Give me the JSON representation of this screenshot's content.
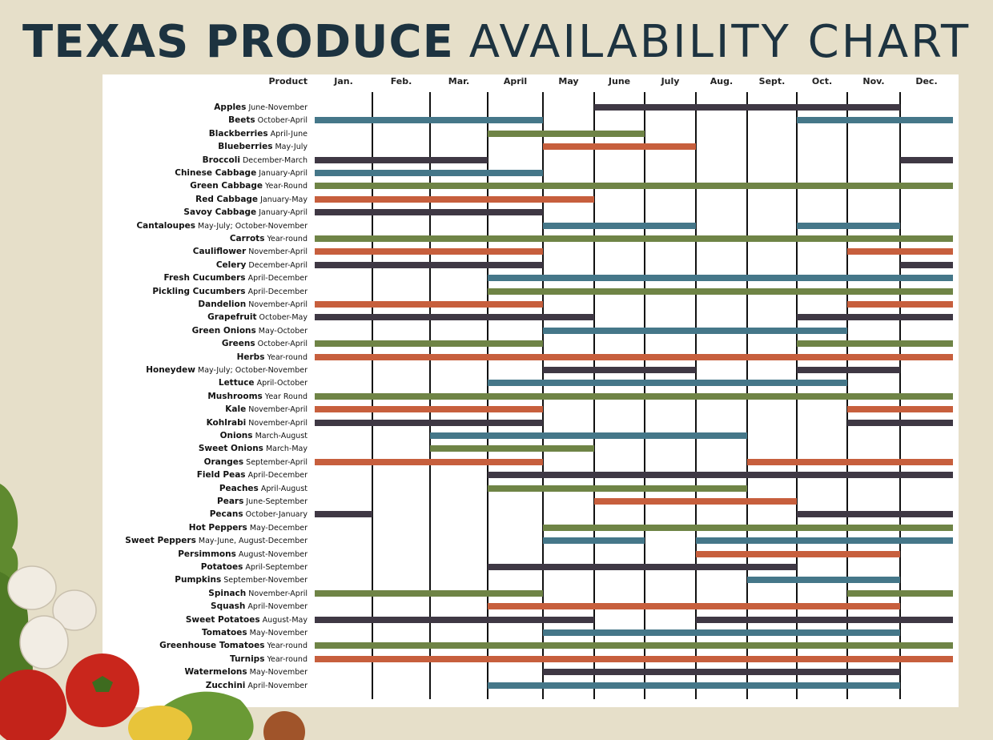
{
  "title": {
    "bold": "TEXAS PRODUCE",
    "light": "AVAILABILITY CHART"
  },
  "chart_data": {
    "type": "gantt",
    "product_header": "Product",
    "months": [
      "Jan.",
      "Feb.",
      "Mar.",
      "April",
      "May",
      "June",
      "July",
      "Aug.",
      "Sept.",
      "Oct.",
      "Nov.",
      "Dec."
    ],
    "colors": {
      "dark": "#3f3844",
      "blue": "#457789",
      "green": "#6f8446",
      "orange": "#c75f3d"
    },
    "products": [
      {
        "name": "Apples",
        "range": "June-November",
        "color": "dark",
        "spans": [
          [
            6,
            11
          ]
        ]
      },
      {
        "name": "Beets",
        "range": "October-April",
        "color": "blue",
        "spans": [
          [
            1,
            4
          ],
          [
            10,
            12
          ]
        ]
      },
      {
        "name": "Blackberries",
        "range": "April-June",
        "color": "green",
        "spans": [
          [
            4,
            6
          ]
        ]
      },
      {
        "name": "Blueberries",
        "range": "May-July",
        "color": "orange",
        "spans": [
          [
            5,
            7
          ]
        ]
      },
      {
        "name": "Broccoli",
        "range": "December-March",
        "color": "dark",
        "spans": [
          [
            1,
            3
          ],
          [
            12,
            12
          ]
        ]
      },
      {
        "name": "Chinese Cabbage",
        "range": "January-April",
        "color": "blue",
        "spans": [
          [
            1,
            4
          ]
        ]
      },
      {
        "name": "Green Cabbage",
        "range": "Year-Round",
        "color": "green",
        "spans": [
          [
            1,
            12
          ]
        ]
      },
      {
        "name": "Red Cabbage",
        "range": "January-May",
        "color": "orange",
        "spans": [
          [
            1,
            5
          ]
        ]
      },
      {
        "name": "Savoy Cabbage",
        "range": "January-April",
        "color": "dark",
        "spans": [
          [
            1,
            4
          ]
        ]
      },
      {
        "name": "Cantaloupes",
        "range": "May-July; October-November",
        "color": "blue",
        "spans": [
          [
            5,
            7
          ],
          [
            10,
            11
          ]
        ]
      },
      {
        "name": "Carrots",
        "range": "Year-round",
        "color": "green",
        "spans": [
          [
            1,
            12
          ]
        ]
      },
      {
        "name": "Cauliflower",
        "range": "November-April",
        "color": "orange",
        "spans": [
          [
            1,
            4
          ],
          [
            11,
            12
          ]
        ]
      },
      {
        "name": "Celery",
        "range": "December-April",
        "color": "dark",
        "spans": [
          [
            1,
            4
          ],
          [
            12,
            12
          ]
        ]
      },
      {
        "name": "Fresh Cucumbers",
        "range": "April-December",
        "color": "blue",
        "spans": [
          [
            4,
            12
          ]
        ]
      },
      {
        "name": "Pickling Cucumbers",
        "range": "April-December",
        "color": "green",
        "spans": [
          [
            4,
            12
          ]
        ]
      },
      {
        "name": "Dandelion",
        "range": "November-April",
        "color": "orange",
        "spans": [
          [
            1,
            4
          ],
          [
            11,
            12
          ]
        ]
      },
      {
        "name": "Grapefruit",
        "range": "October-May",
        "color": "dark",
        "spans": [
          [
            1,
            5
          ],
          [
            10,
            12
          ]
        ]
      },
      {
        "name": "Green Onions",
        "range": "May-October",
        "color": "blue",
        "spans": [
          [
            5,
            10
          ]
        ]
      },
      {
        "name": "Greens",
        "range": "October-April",
        "color": "green",
        "spans": [
          [
            1,
            4
          ],
          [
            10,
            12
          ]
        ]
      },
      {
        "name": "Herbs",
        "range": "Year-round",
        "color": "orange",
        "spans": [
          [
            1,
            12
          ]
        ]
      },
      {
        "name": "Honeydew",
        "range": "May-July; October-November",
        "color": "dark",
        "spans": [
          [
            5,
            7
          ],
          [
            10,
            11
          ]
        ]
      },
      {
        "name": "Lettuce",
        "range": "April-October",
        "color": "blue",
        "spans": [
          [
            4,
            10
          ]
        ]
      },
      {
        "name": "Mushrooms",
        "range": "Year Round",
        "color": "green",
        "spans": [
          [
            1,
            12
          ]
        ]
      },
      {
        "name": "Kale",
        "range": "November-April",
        "color": "orange",
        "spans": [
          [
            1,
            4
          ],
          [
            11,
            12
          ]
        ]
      },
      {
        "name": "Kohlrabi",
        "range": "November-April",
        "color": "dark",
        "spans": [
          [
            1,
            4
          ],
          [
            11,
            12
          ]
        ]
      },
      {
        "name": "Onions",
        "range": "March-August",
        "color": "blue",
        "spans": [
          [
            3,
            8
          ]
        ]
      },
      {
        "name": "Sweet Onions",
        "range": "March-May",
        "color": "green",
        "spans": [
          [
            3,
            5
          ]
        ]
      },
      {
        "name": "Oranges",
        "range": "September-April",
        "color": "orange",
        "spans": [
          [
            1,
            4
          ],
          [
            9,
            12
          ]
        ]
      },
      {
        "name": "Field Peas",
        "range": "April-December",
        "color": "dark",
        "spans": [
          [
            4,
            12
          ]
        ]
      },
      {
        "name": "Peaches",
        "range": "April-August",
        "color": "green",
        "spans": [
          [
            4,
            8
          ]
        ]
      },
      {
        "name": "Pears",
        "range": "June-September",
        "color": "orange",
        "spans": [
          [
            6,
            9
          ]
        ]
      },
      {
        "name": "Pecans",
        "range": "October-January",
        "color": "dark",
        "spans": [
          [
            1,
            1
          ],
          [
            10,
            12
          ]
        ]
      },
      {
        "name": "Hot Peppers",
        "range": "May-December",
        "color": "green",
        "spans": [
          [
            5,
            12
          ]
        ]
      },
      {
        "name": "Sweet Peppers",
        "range": "May-June, August-December",
        "color": "blue",
        "spans": [
          [
            5,
            6
          ],
          [
            8,
            12
          ]
        ]
      },
      {
        "name": "Persimmons",
        "range": "August-November",
        "color": "orange",
        "spans": [
          [
            8,
            11
          ]
        ]
      },
      {
        "name": "Potatoes",
        "range": "April-September",
        "color": "dark",
        "spans": [
          [
            4,
            9
          ]
        ]
      },
      {
        "name": "Pumpkins",
        "range": "September-November",
        "color": "blue",
        "spans": [
          [
            9,
            11
          ]
        ]
      },
      {
        "name": "Spinach",
        "range": "November-April",
        "color": "green",
        "spans": [
          [
            1,
            4
          ],
          [
            11,
            12
          ]
        ]
      },
      {
        "name": "Squash",
        "range": "April-November",
        "color": "orange",
        "spans": [
          [
            4,
            11
          ]
        ]
      },
      {
        "name": "Sweet Potatoes",
        "range": "August-May",
        "color": "dark",
        "spans": [
          [
            1,
            5
          ],
          [
            8,
            12
          ]
        ]
      },
      {
        "name": "Tomatoes",
        "range": "May-November",
        "color": "blue",
        "spans": [
          [
            5,
            11
          ]
        ]
      },
      {
        "name": "Greenhouse Tomatoes",
        "range": "Year-round",
        "color": "green",
        "spans": [
          [
            1,
            12
          ]
        ]
      },
      {
        "name": "Turnips",
        "range": "Year-round",
        "color": "orange",
        "spans": [
          [
            1,
            12
          ]
        ]
      },
      {
        "name": "Watermelons",
        "range": "May-November",
        "color": "dark",
        "spans": [
          [
            5,
            11
          ]
        ]
      },
      {
        "name": "Zucchini",
        "range": "April-November",
        "color": "blue",
        "spans": [
          [
            4,
            11
          ]
        ]
      }
    ]
  }
}
